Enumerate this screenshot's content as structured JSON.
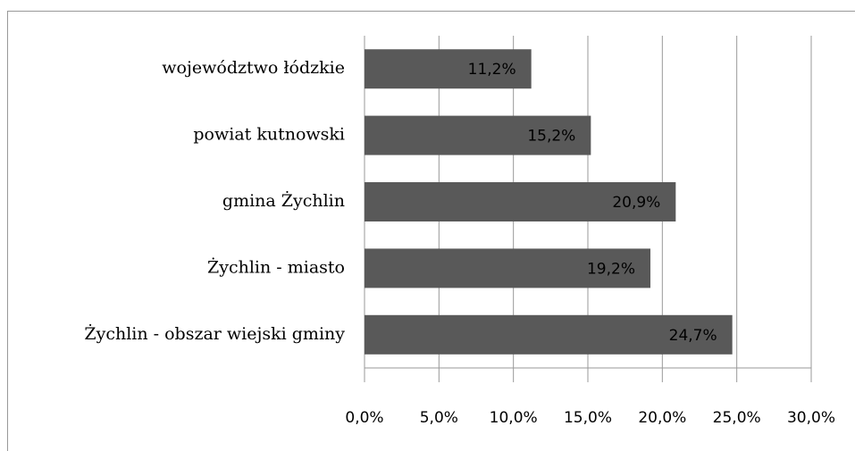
{
  "chart_data": {
    "type": "bar",
    "orientation": "horizontal",
    "categories": [
      "województwo łódzkie",
      "powiat kutnowski",
      "gmina Żychlin",
      "Żychlin - miasto",
      "Żychlin - obszar wiejski gminy"
    ],
    "values": [
      11.2,
      15.2,
      20.9,
      19.2,
      24.7
    ],
    "value_labels": [
      "11,2%",
      "15,2%",
      "20,9%",
      "19,2%",
      "24,7%"
    ],
    "color": "#595959",
    "xlim": [
      0,
      30
    ],
    "xticks": [
      {
        "value": 0,
        "label": "0,0%"
      },
      {
        "value": 5,
        "label": "5,0%"
      },
      {
        "value": 10,
        "label": "10,0%"
      },
      {
        "value": 15,
        "label": "15,0%"
      },
      {
        "value": 20,
        "label": "20,0%"
      },
      {
        "value": 25,
        "label": "25,0%"
      },
      {
        "value": 30,
        "label": "30,0%"
      }
    ],
    "grid": true
  }
}
